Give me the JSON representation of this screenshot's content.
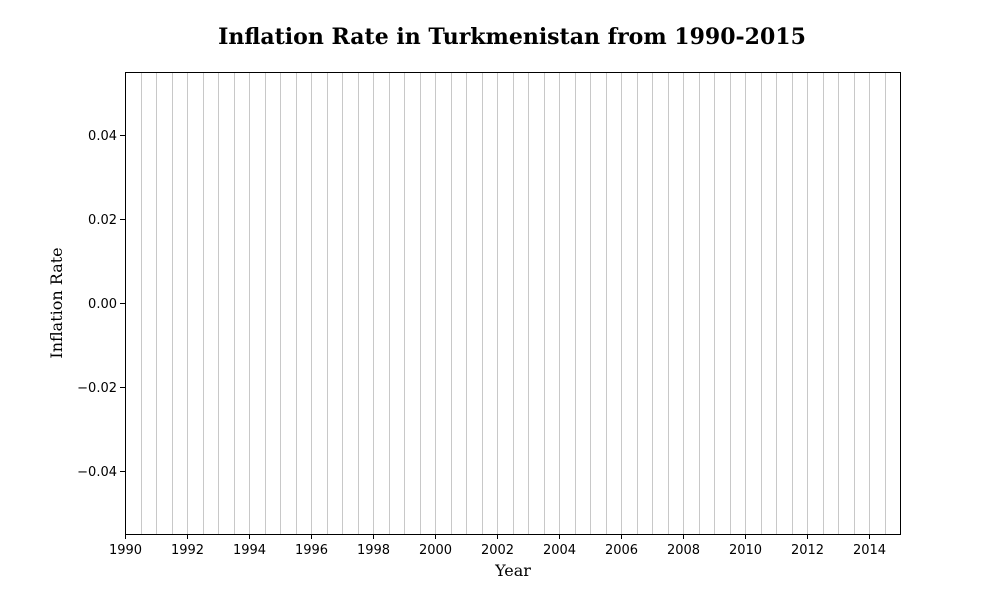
{
  "chart_data": {
    "type": "bar",
    "title": "Inflation Rate in Turkmenistan from 1990-2015",
    "xlabel": "Year",
    "ylabel": "Inflation Rate",
    "xlim": [
      1990,
      2015
    ],
    "ylim": [
      -0.055,
      0.055
    ],
    "x_ticks": [
      1990,
      1992,
      1994,
      1996,
      1998,
      2000,
      2002,
      2004,
      2006,
      2008,
      2010,
      2012,
      2014
    ],
    "x_tick_labels": [
      "1990",
      "1992",
      "1994",
      "1996",
      "1998",
      "2000",
      "2002",
      "2004",
      "2006",
      "2008",
      "2010",
      "2012",
      "2014"
    ],
    "y_ticks": [
      0.04,
      0.02,
      0.0,
      -0.02,
      -0.04
    ],
    "y_tick_labels": [
      "0.04",
      "0.02",
      "0.00",
      "−0.02",
      "−0.04"
    ],
    "grid": "vertical",
    "grid_step": 0.5,
    "series": [
      {
        "values": []
      }
    ]
  }
}
